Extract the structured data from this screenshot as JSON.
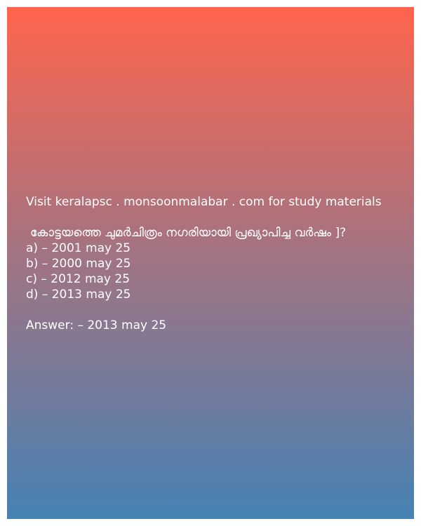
{
  "site_line": "Visit keralapsc . monsoonmalabar . com for study materials",
  "question": "കോട്ടയത്തെ ചുമർചിത്രം നഗരിയായി പ്രഖ്യാപിച്ച വർഷം ]?",
  "options": [
    "a) – 2001 may  25",
    "b) – 2000 may  25",
    "c) – 2012 may  25",
    "d) – 2013 may  25"
  ],
  "answer": "Answer: – 2013 may  25",
  "colors": {
    "gradient_top": "#ff644c",
    "gradient_bottom": "#4682b4",
    "text": "#ffffff"
  }
}
